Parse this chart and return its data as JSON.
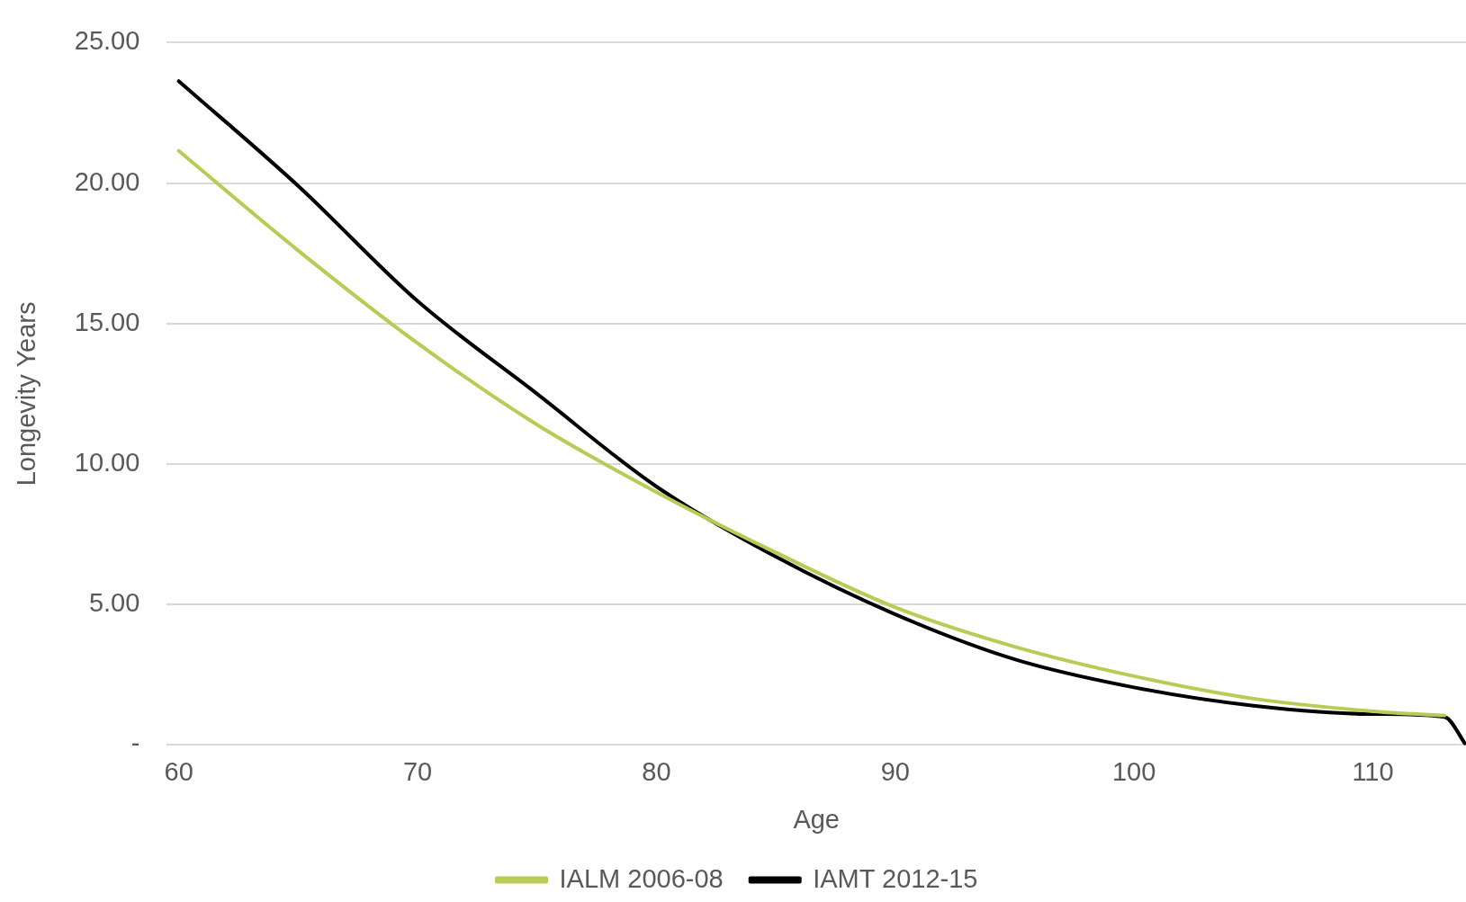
{
  "chart_data": {
    "type": "line",
    "xlabel": "Age",
    "ylabel": "Longevity Years",
    "xlim": [
      59.5,
      113.9
    ],
    "xticks": [
      60,
      70,
      80,
      90,
      100,
      110
    ],
    "ylim": [
      0,
      25
    ],
    "yticks": [
      {
        "value": 0,
        "label": "-"
      },
      {
        "value": 5,
        "label": "5.00"
      },
      {
        "value": 10,
        "label": "10.00"
      },
      {
        "value": 15,
        "label": "15.00"
      },
      {
        "value": 20,
        "label": "20.00"
      },
      {
        "value": 25,
        "label": "25.00"
      }
    ],
    "grid": "y",
    "legend": "bottom",
    "marker": "none",
    "line_style": "solid",
    "series": [
      {
        "name": "IALM 2006-08",
        "color": "#b5cc55",
        "x": [
          60,
          65,
          70,
          75,
          80,
          85,
          90,
          95,
          100,
          105,
          110,
          113
        ],
        "values": [
          21.15,
          17.6,
          14.3,
          11.4,
          9.0,
          6.85,
          4.9,
          3.5,
          2.45,
          1.65,
          1.2,
          1.05
        ]
      },
      {
        "name": "IAMT 2012-15",
        "color": "#000000",
        "x": [
          60,
          65,
          70,
          75,
          80,
          85,
          90,
          95,
          100,
          105,
          110,
          113,
          113.9
        ],
        "values": [
          23.63,
          19.9,
          15.8,
          12.5,
          9.2,
          6.7,
          4.65,
          3.05,
          2.05,
          1.4,
          1.1,
          1.0,
          0
        ]
      }
    ]
  }
}
